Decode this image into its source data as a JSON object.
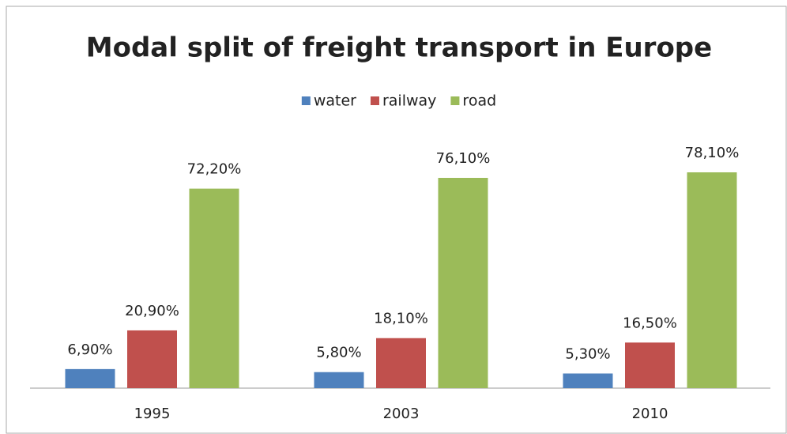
{
  "chart_data": {
    "type": "bar",
    "title": "Modal split of freight transport in Europe",
    "categories": [
      "1995",
      "2003",
      "2010"
    ],
    "series": [
      {
        "name": "water",
        "color": "#4f81bd",
        "values": [
          6.9,
          5.8,
          5.3
        ],
        "value_labels": [
          "6,90%",
          "5,80%",
          "5,30%"
        ]
      },
      {
        "name": "railway",
        "color": "#c0504d",
        "values": [
          20.9,
          18.1,
          16.5
        ],
        "value_labels": [
          "20,90%",
          "18,10%",
          "16,50%"
        ]
      },
      {
        "name": "road",
        "color": "#9bbb59",
        "values": [
          72.2,
          76.1,
          78.1
        ],
        "value_labels": [
          "72,20%",
          "76,10%",
          "78,10%"
        ]
      }
    ],
    "legend": "top"
  }
}
